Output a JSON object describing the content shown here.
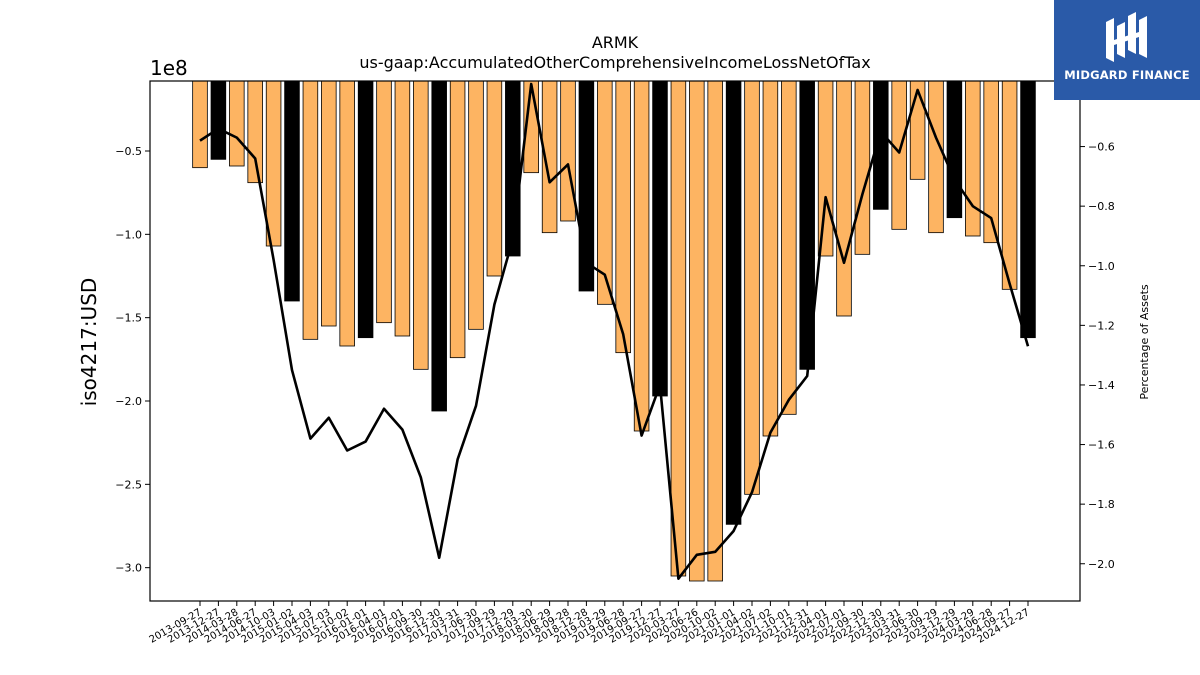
{
  "brand": {
    "name": "MIDGARD FINANCE",
    "icon": "midgard-logo-icon",
    "bg_color": "#2a5aa8"
  },
  "chart_data": {
    "type": "bar",
    "title": "ARMK",
    "subtitle": "us-gaap:AccumulatedOtherComprehensiveIncomeLossNetOfTax",
    "ylabel": "iso4217:USD",
    "y_multiplier_label": "1e8",
    "y2label": "Percentage of Assets",
    "ylim": [
      -320000000,
      -8000000
    ],
    "y2lim": [
      -2.125,
      -0.38
    ],
    "yticks": [
      -50000000,
      -100000000,
      -150000000,
      -200000000,
      -250000000,
      -300000000
    ],
    "ytick_labels": [
      "−0.5",
      "−1.0",
      "−1.5",
      "−2.0",
      "−2.5",
      "−3.0"
    ],
    "y2ticks": [
      -0.4,
      -0.6,
      -0.8,
      -1.0,
      -1.2,
      -1.4,
      -1.6,
      -1.8,
      -2.0
    ],
    "y2tick_labels": [
      "−0.4",
      "−0.6",
      "−0.8",
      "−1.0",
      "−1.2",
      "−1.4",
      "−1.6",
      "−1.8",
      "−2.0"
    ],
    "grid": false,
    "colors": {
      "quarterly_bar": "#fdb462",
      "annual_bar": "#000000",
      "line": "#000000"
    },
    "categories": [
      "2013-09-27",
      "2013-12-27",
      "2014-03-28",
      "2014-06-27",
      "2014-10-03",
      "2015-01-02",
      "2015-04-03",
      "2015-07-03",
      "2015-10-02",
      "2016-01-01",
      "2016-04-01",
      "2016-07-01",
      "2016-09-30",
      "2016-12-30",
      "2017-03-31",
      "2017-06-30",
      "2017-09-29",
      "2017-12-29",
      "2018-03-30",
      "2018-06-29",
      "2018-09-28",
      "2018-12-28",
      "2019-03-29",
      "2019-06-28",
      "2019-09-27",
      "2019-12-27",
      "2020-03-27",
      "2020-06-26",
      "2020-10-02",
      "2021-01-01",
      "2021-04-02",
      "2021-07-02",
      "2021-10-01",
      "2021-12-31",
      "2022-04-01",
      "2022-07-01",
      "2022-09-30",
      "2022-12-30",
      "2023-03-31",
      "2023-06-30",
      "2023-09-29",
      "2023-12-29",
      "2024-03-29",
      "2024-06-28",
      "2024-09-27",
      "2024-12-27"
    ],
    "series": [
      {
        "kind": "bar",
        "values": [
          -60000000,
          -55000000,
          -59000000,
          -69000000,
          -107000000,
          -140000000,
          -163000000,
          -155000000,
          -167000000,
          -162000000,
          -153000000,
          -161000000,
          -181000000,
          -206000000,
          -174000000,
          -157000000,
          -125000000,
          -113000000,
          -63000000,
          -99000000,
          -92000000,
          -134000000,
          -142000000,
          -171000000,
          -218000000,
          -197000000,
          -305000000,
          -308000000,
          -308000000,
          -274000000,
          -256000000,
          -221000000,
          -208000000,
          -181000000,
          -113000000,
          -149000000,
          -112000000,
          -85000000,
          -97000000,
          -67000000,
          -99000000,
          -90000000,
          -101000000,
          -105000000,
          -133000000,
          -162000000
        ],
        "fiscal_year_end": [
          false,
          true,
          false,
          false,
          false,
          true,
          false,
          false,
          false,
          true,
          false,
          false,
          false,
          true,
          false,
          false,
          false,
          true,
          false,
          false,
          false,
          true,
          false,
          false,
          false,
          true,
          false,
          false,
          false,
          true,
          false,
          false,
          false,
          true,
          false,
          false,
          false,
          true,
          false,
          false,
          false,
          true,
          false,
          false,
          false,
          true
        ]
      },
      {
        "kind": "line",
        "axis": "right",
        "values": [
          -0.58,
          -0.54,
          -0.57,
          -0.64,
          -0.98,
          -1.35,
          -1.58,
          -1.51,
          -1.62,
          -1.59,
          -1.48,
          -1.55,
          -1.71,
          -1.98,
          -1.65,
          -1.47,
          -1.13,
          -0.91,
          -0.39,
          -0.72,
          -0.66,
          -0.99,
          -1.03,
          -1.23,
          -1.57,
          -1.4,
          -2.05,
          -1.97,
          -1.96,
          -1.89,
          -1.76,
          -1.56,
          -1.45,
          -1.37,
          -0.77,
          -0.99,
          -0.76,
          -0.55,
          -0.62,
          -0.41,
          -0.57,
          -0.71,
          -0.8,
          -0.84,
          -1.06,
          -1.27
        ]
      }
    ]
  }
}
